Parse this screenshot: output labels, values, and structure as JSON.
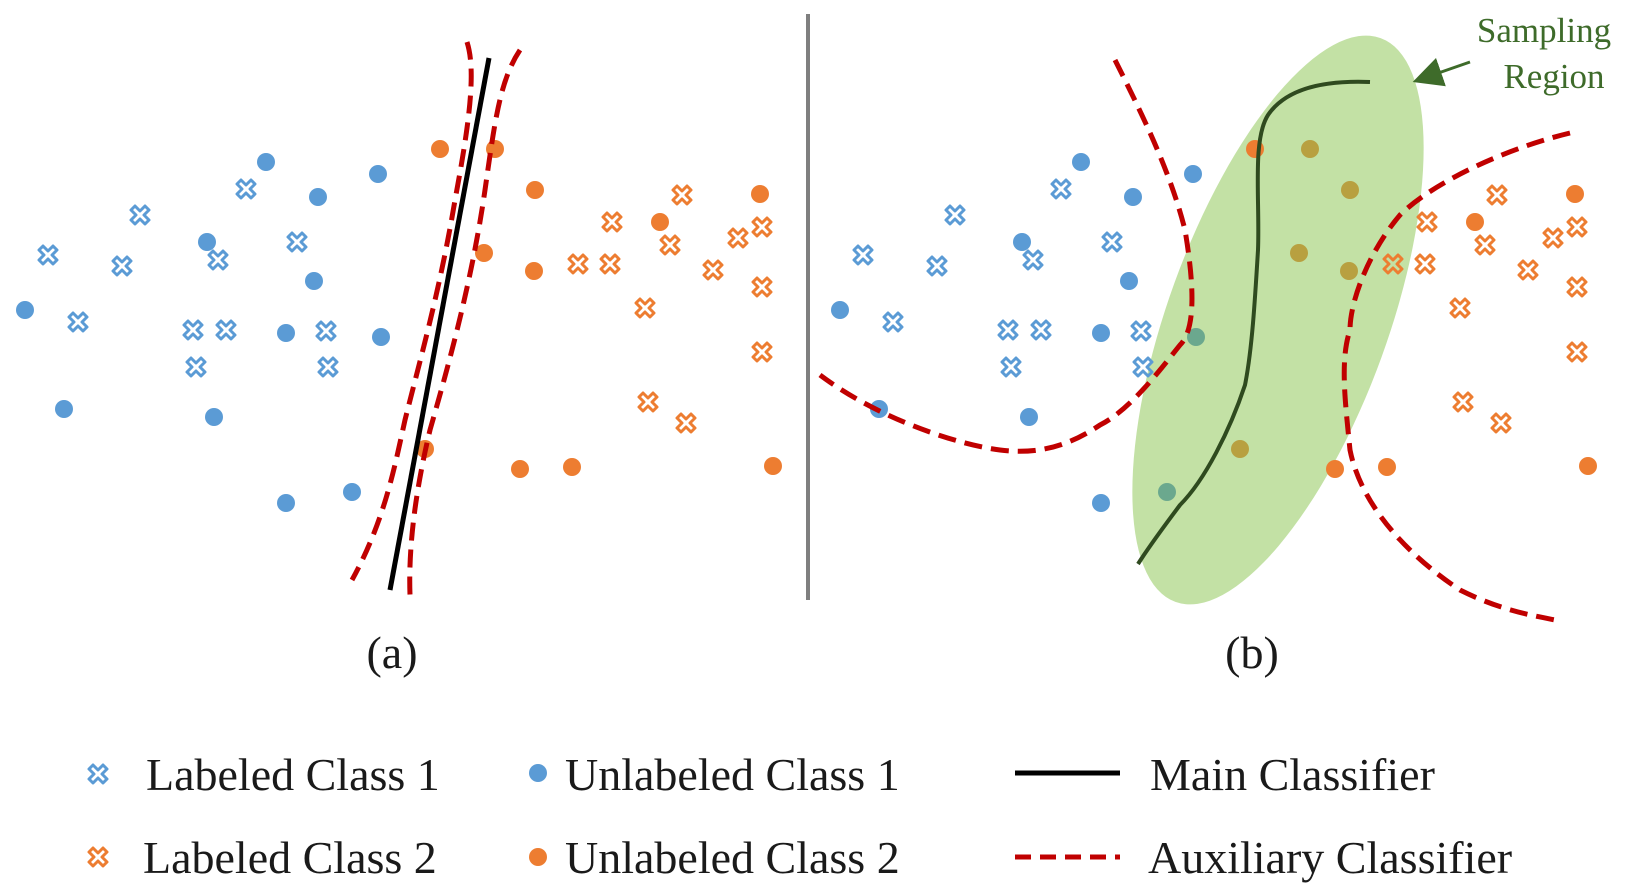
{
  "colors": {
    "class1": "#5b9bd5",
    "class2": "#ed7d31",
    "main_classifier": "#000000",
    "auxiliary_classifier": "#c00000",
    "sampling_region_fill": "#a9d47f",
    "annotation_text": "#3e6b2a",
    "divider": "#7f7f7f",
    "mixed_points": "#b8a040",
    "mixed_points_green": "#6ba88e"
  },
  "panels": [
    {
      "id": "a",
      "caption": "(a)"
    },
    {
      "id": "b",
      "caption": "(b)"
    }
  ],
  "annotation": {
    "line1": "Sampling",
    "line2": "Region"
  },
  "legend": {
    "labeled_class_1": "Labeled Class 1",
    "unlabeled_class_1": "Unlabeled Class 1",
    "labeled_class_2": "Labeled Class 2",
    "unlabeled_class_2": "Unlabeled Class 2",
    "main_classifier": "Main Classifier",
    "auxiliary_classifier": "Auxiliary Classifier"
  },
  "icons": {
    "labeled_marker": "cross-icon",
    "unlabeled_marker": "dot-icon",
    "main_line": "solid-line-icon",
    "aux_line": "dashed-line-icon"
  }
}
